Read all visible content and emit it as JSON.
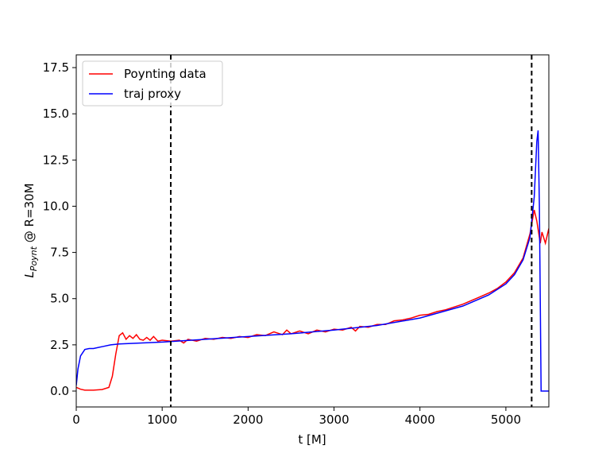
{
  "chart_data": {
    "type": "line",
    "xlabel": "t [M]",
    "ylabel_parts": [
      "L",
      "Poynt",
      " @ R=30M"
    ],
    "xlim": [
      0,
      5500
    ],
    "ylim": [
      -0.86,
      18.19
    ],
    "xticks": [
      0,
      1000,
      2000,
      3000,
      4000,
      5000
    ],
    "yticks": [
      {
        "value": 0,
        "label": "0.0"
      },
      2.5,
      {
        "value": 5,
        "label": "5.0"
      },
      7.5,
      {
        "value": 10,
        "label": "10.0"
      },
      12.5,
      {
        "value": 15,
        "label": "15.0"
      },
      17.5
    ],
    "grid": false,
    "legend": "upper left",
    "vlines": [
      1100,
      5300
    ],
    "vline_color": "#000000",
    "series": [
      {
        "name": "Poynting data",
        "color": "#ff0000",
        "x": [
          0,
          50,
          100,
          200,
          300,
          380,
          420,
          460,
          500,
          540,
          580,
          620,
          660,
          700,
          740,
          780,
          820,
          860,
          900,
          950,
          1000,
          1100,
          1200,
          1250,
          1300,
          1400,
          1500,
          1600,
          1700,
          1800,
          1900,
          2000,
          2100,
          2200,
          2300,
          2400,
          2450,
          2500,
          2600,
          2700,
          2800,
          2900,
          3000,
          3100,
          3200,
          3250,
          3300,
          3400,
          3500,
          3600,
          3700,
          3800,
          3900,
          4000,
          4100,
          4200,
          4300,
          4400,
          4500,
          4600,
          4700,
          4800,
          4900,
          5000,
          5100,
          5200,
          5280,
          5330,
          5360,
          5400,
          5420,
          5460,
          5500
        ],
        "values": [
          0.2,
          0.1,
          0.05,
          0.05,
          0.08,
          0.2,
          0.8,
          2.0,
          3.0,
          3.15,
          2.8,
          3.0,
          2.85,
          3.05,
          2.8,
          2.75,
          2.9,
          2.75,
          2.95,
          2.7,
          2.75,
          2.7,
          2.75,
          2.6,
          2.8,
          2.7,
          2.85,
          2.8,
          2.9,
          2.85,
          2.95,
          2.9,
          3.05,
          3.0,
          3.2,
          3.05,
          3.3,
          3.1,
          3.25,
          3.1,
          3.3,
          3.2,
          3.35,
          3.3,
          3.45,
          3.25,
          3.5,
          3.45,
          3.6,
          3.6,
          3.8,
          3.85,
          3.95,
          4.1,
          4.15,
          4.3,
          4.4,
          4.55,
          4.7,
          4.9,
          5.1,
          5.3,
          5.55,
          5.9,
          6.4,
          7.2,
          8.5,
          9.8,
          9.2,
          8.0,
          8.6,
          8.0,
          8.8
        ]
      },
      {
        "name": "traj proxy",
        "color": "#0000ff",
        "x": [
          0,
          20,
          50,
          100,
          150,
          200,
          300,
          400,
          500,
          1000,
          1500,
          2000,
          2500,
          3000,
          3500,
          4000,
          4500,
          4800,
          5000,
          5100,
          5200,
          5280,
          5330,
          5360,
          5375,
          5390,
          5400,
          5410,
          5500
        ],
        "values": [
          0.3,
          1.2,
          1.9,
          2.25,
          2.3,
          2.3,
          2.4,
          2.5,
          2.55,
          2.65,
          2.8,
          2.95,
          3.1,
          3.3,
          3.55,
          3.95,
          4.6,
          5.2,
          5.8,
          6.3,
          7.1,
          8.3,
          10.5,
          13.5,
          14.1,
          10,
          5,
          0,
          0
        ]
      }
    ]
  }
}
